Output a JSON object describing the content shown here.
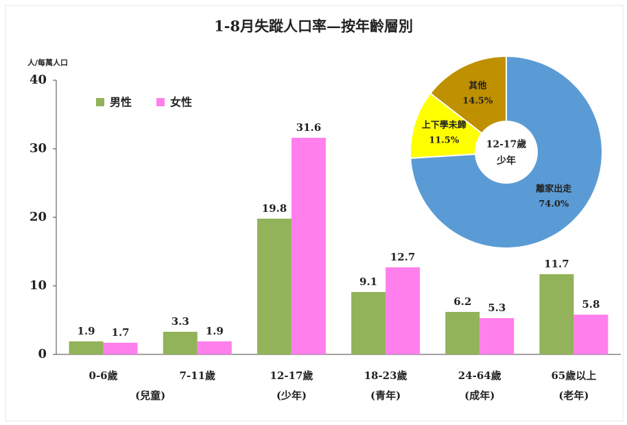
{
  "chart_data": [
    {
      "type": "bar",
      "title": "1-8月失蹤人口率—按年齡層別",
      "y_label": "人/每萬人口",
      "categories": [
        "0-6歲",
        "7-11歲",
        "12-17歲",
        "18-23歲",
        "24-64歲",
        "65歲以上"
      ],
      "category_groups": [
        "(兒童)",
        null,
        "(少年)",
        "(青年)",
        "(成年)",
        "(老年)"
      ],
      "series": [
        {
          "name": "男性",
          "color": "#92b35a",
          "values": [
            1.9,
            3.3,
            19.8,
            9.1,
            6.2,
            11.7
          ]
        },
        {
          "name": "女性",
          "color": "#ff80ec",
          "values": [
            1.7,
            1.9,
            31.6,
            12.7,
            5.3,
            5.8
          ]
        }
      ],
      "ylim": [
        0,
        40
      ],
      "yticks": [
        0,
        10,
        20,
        30,
        40
      ],
      "legend": "upper left"
    },
    {
      "type": "pie",
      "center_label": [
        "12-17歲",
        "少年"
      ],
      "categories": [
        "離家出走",
        "上下學未歸",
        "其他"
      ],
      "values": [
        74.0,
        11.5,
        14.5
      ],
      "value_labels": [
        "74.0%",
        "11.5%",
        "14.5%"
      ],
      "colors": [
        "#5b9bd5",
        "#ffff00",
        "#bf9000"
      ]
    }
  ]
}
